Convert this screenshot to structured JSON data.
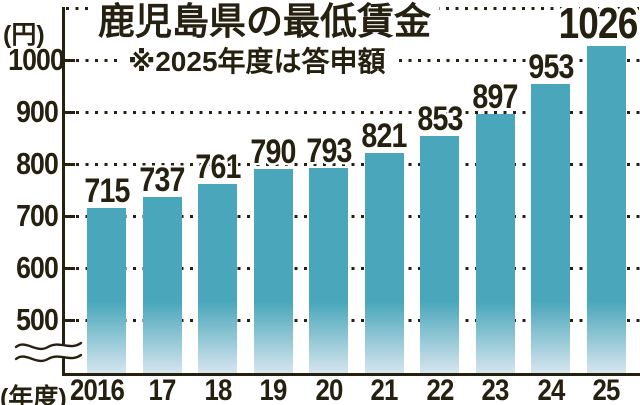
{
  "title": "鹿児島県の最低賃金",
  "note": "※2025年度は答申額",
  "y_axis": {
    "unit": "(円)",
    "tick_labels": [
      "1000",
      "900",
      "800",
      "700",
      "600",
      "500"
    ]
  },
  "x_axis": {
    "unit": "(年度)"
  },
  "chart_data": {
    "type": "bar",
    "title": "鹿児島県の最低賃金",
    "subtitle": "※2025年度は答申額",
    "categories": [
      "2016",
      "17",
      "18",
      "19",
      "20",
      "21",
      "22",
      "23",
      "24",
      "25"
    ],
    "values": [
      715,
      737,
      761,
      790,
      793,
      821,
      853,
      897,
      953,
      1026
    ],
    "value_labels": [
      "715",
      "737",
      "761",
      "790",
      "793",
      "821",
      "853",
      "897",
      "953",
      "1026"
    ],
    "highlight_last_value": true,
    "xlabel": "(年度)",
    "ylabel": "(円)",
    "ylim": [
      500,
      1050
    ],
    "y_ticks": [
      500,
      600,
      700,
      800,
      900,
      1000
    ],
    "axis_break_below": 500,
    "grid": "dotted-horizontal",
    "legend": "none",
    "colors": {
      "bar": "#4aa7bb",
      "bar_fade": "#d5e5ee",
      "ink": "#25200f"
    }
  }
}
